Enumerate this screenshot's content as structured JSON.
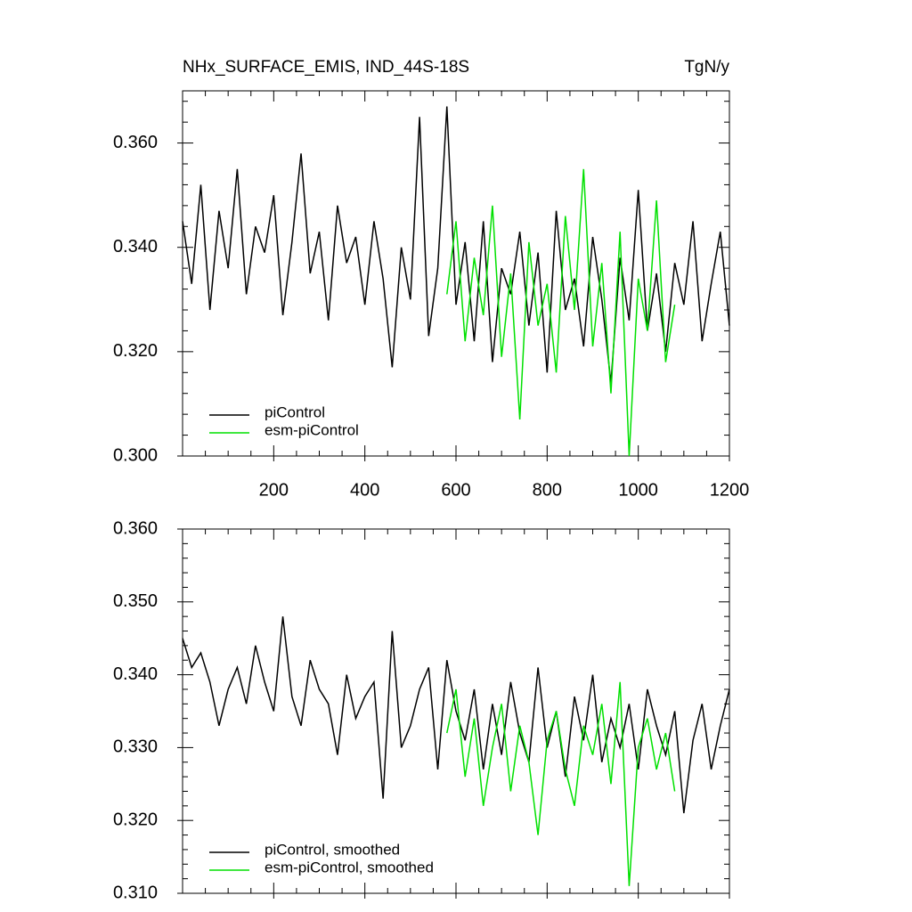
{
  "chart_data": [
    {
      "type": "line",
      "title": "NHx_SURFACE_EMIS, IND_44S-18S",
      "subtitle": "TgN/y",
      "x": [
        0,
        20,
        40,
        60,
        80,
        100,
        120,
        140,
        160,
        180,
        200,
        220,
        240,
        260,
        280,
        300,
        320,
        340,
        360,
        380,
        400,
        420,
        440,
        460,
        480,
        500,
        520,
        540,
        560,
        580,
        600,
        620,
        640,
        660,
        680,
        700,
        720,
        740,
        760,
        780,
        800,
        820,
        840,
        860,
        880,
        900,
        920,
        940,
        960,
        980,
        1000,
        1020,
        1040,
        1060,
        1080,
        1100,
        1120,
        1140,
        1160,
        1180,
        1200
      ],
      "series": [
        {
          "name": "piControl",
          "color": "#000000",
          "values": [
            0.345,
            0.333,
            0.352,
            0.328,
            0.347,
            0.336,
            0.355,
            0.331,
            0.344,
            0.339,
            0.35,
            0.327,
            0.341,
            0.358,
            0.335,
            0.343,
            0.326,
            0.348,
            0.337,
            0.342,
            0.329,
            0.345,
            0.334,
            0.317,
            0.34,
            0.33,
            0.365,
            0.323,
            0.336,
            0.367,
            0.329,
            0.341,
            0.322,
            0.345,
            0.318,
            0.336,
            0.331,
            0.343,
            0.325,
            0.339,
            0.316,
            0.347,
            0.328,
            0.334,
            0.321,
            0.342,
            0.33,
            0.314,
            0.338,
            0.326,
            0.351,
            0.324,
            0.335,
            0.32,
            0.337,
            0.329,
            0.345,
            0.322,
            0.333,
            0.343,
            0.325
          ]
        },
        {
          "name": "esm-piControl",
          "color": "#00e000",
          "values": [
            null,
            null,
            null,
            null,
            null,
            null,
            null,
            null,
            null,
            null,
            null,
            null,
            null,
            null,
            null,
            null,
            null,
            null,
            null,
            null,
            null,
            null,
            null,
            null,
            null,
            null,
            null,
            null,
            null,
            0.331,
            0.345,
            0.322,
            0.338,
            0.327,
            0.348,
            0.319,
            0.335,
            0.307,
            0.341,
            0.325,
            0.333,
            0.316,
            0.346,
            0.328,
            0.355,
            0.321,
            0.337,
            0.312,
            0.343,
            0.3,
            0.334,
            0.324,
            0.349,
            0.318,
            0.329,
            null,
            null,
            null,
            null,
            null,
            null
          ]
        }
      ],
      "xlim": [
        0,
        1200
      ],
      "xticks": [
        200,
        400,
        600,
        800,
        1000,
        1200
      ],
      "ylim": [
        0.3,
        0.37
      ],
      "yticks": [
        {
          "value": 0.3,
          "label": "0.300"
        },
        {
          "value": 0.32,
          "label": "0.320"
        },
        {
          "value": 0.34,
          "label": "0.340"
        },
        {
          "value": 0.36,
          "label": "0.360"
        }
      ],
      "legend": "lower left"
    },
    {
      "type": "line",
      "x": [
        0,
        20,
        40,
        60,
        80,
        100,
        120,
        140,
        160,
        180,
        200,
        220,
        240,
        260,
        280,
        300,
        320,
        340,
        360,
        380,
        400,
        420,
        440,
        460,
        480,
        500,
        520,
        540,
        560,
        580,
        600,
        620,
        640,
        660,
        680,
        700,
        720,
        740,
        760,
        780,
        800,
        820,
        840,
        860,
        880,
        900,
        920,
        940,
        960,
        980,
        1000,
        1020,
        1040,
        1060,
        1080,
        1100,
        1120,
        1140,
        1160,
        1180,
        1200
      ],
      "series": [
        {
          "name": "piControl, smoothed",
          "color": "#000000",
          "values": [
            0.345,
            0.341,
            0.343,
            0.339,
            0.333,
            0.338,
            0.341,
            0.336,
            0.344,
            0.339,
            0.335,
            0.348,
            0.337,
            0.333,
            0.342,
            0.338,
            0.336,
            0.329,
            0.34,
            0.334,
            0.337,
            0.339,
            0.323,
            0.346,
            0.33,
            0.333,
            0.338,
            0.341,
            0.327,
            0.342,
            0.335,
            0.331,
            0.338,
            0.327,
            0.336,
            0.329,
            0.339,
            0.332,
            0.328,
            0.341,
            0.33,
            0.335,
            0.326,
            0.337,
            0.331,
            0.34,
            0.328,
            0.334,
            0.33,
            0.336,
            0.327,
            0.338,
            0.333,
            0.329,
            0.335,
            0.321,
            0.331,
            0.336,
            0.327,
            0.333,
            0.338
          ]
        },
        {
          "name": "esm-piControl, smoothed",
          "color": "#00e000",
          "values": [
            null,
            null,
            null,
            null,
            null,
            null,
            null,
            null,
            null,
            null,
            null,
            null,
            null,
            null,
            null,
            null,
            null,
            null,
            null,
            null,
            null,
            null,
            null,
            null,
            null,
            null,
            null,
            null,
            null,
            0.332,
            0.338,
            0.326,
            0.334,
            0.322,
            0.33,
            0.336,
            0.324,
            0.333,
            0.328,
            0.318,
            0.331,
            0.335,
            0.327,
            0.322,
            0.333,
            0.329,
            0.336,
            0.325,
            0.339,
            0.311,
            0.33,
            0.334,
            0.327,
            0.332,
            0.324,
            null,
            null,
            null,
            null,
            null,
            null
          ]
        }
      ],
      "xlim": [
        0,
        1200
      ],
      "ylim": [
        0.31,
        0.36
      ],
      "yticks": [
        {
          "value": 0.31,
          "label": "0.310"
        },
        {
          "value": 0.32,
          "label": "0.320"
        },
        {
          "value": 0.33,
          "label": "0.330"
        },
        {
          "value": 0.34,
          "label": "0.340"
        },
        {
          "value": 0.35,
          "label": "0.350"
        },
        {
          "value": 0.36,
          "label": "0.360"
        }
      ],
      "legend": "lower left"
    }
  ]
}
